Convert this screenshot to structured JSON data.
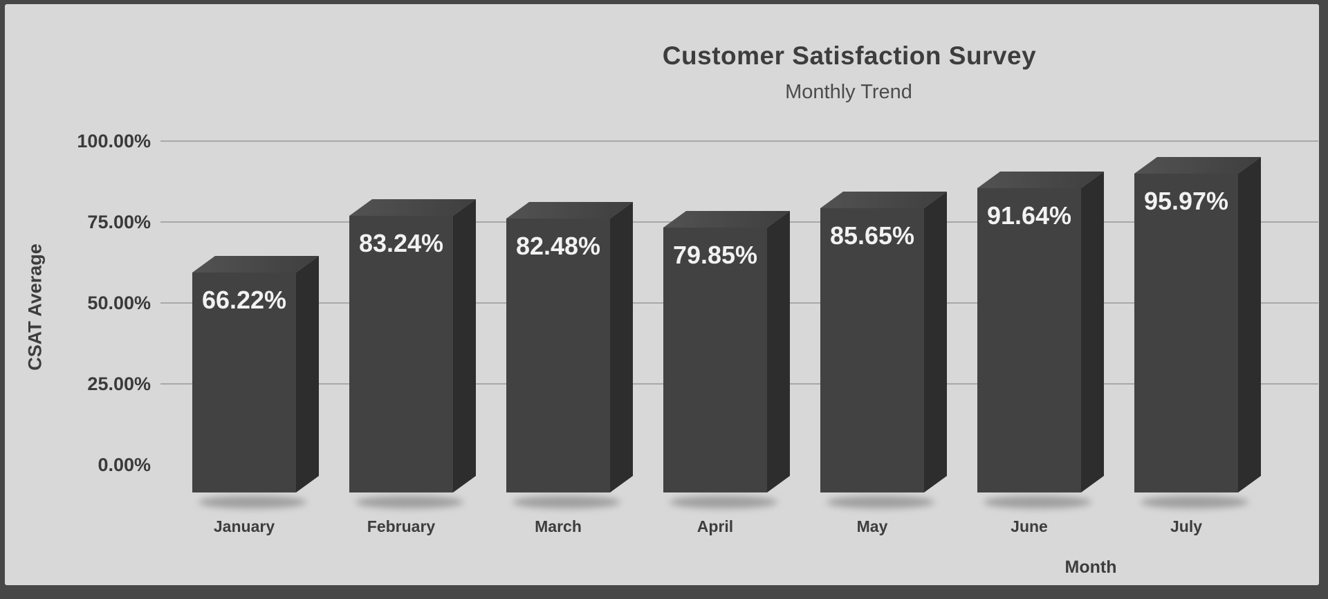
{
  "header": {
    "title": "Customer Satisfaction Survey",
    "subtitle": "Monthly Trend"
  },
  "chart_data": {
    "type": "bar",
    "style": "3d-column",
    "title": "Customer Satisfaction Survey",
    "subtitle": "Monthly Trend",
    "categories": [
      "January",
      "February",
      "March",
      "April",
      "May",
      "June",
      "July"
    ],
    "values": [
      66.22,
      83.24,
      82.48,
      79.85,
      85.65,
      91.64,
      95.97
    ],
    "value_labels": [
      "66.22%",
      "83.24%",
      "82.48%",
      "79.85%",
      "85.65%",
      "91.64%",
      "95.97%"
    ],
    "xlabel": "Month",
    "ylabel": "CSAT Average",
    "ylim": [
      0,
      100
    ],
    "yticks": [
      {
        "value": 0,
        "label": "0.00%"
      },
      {
        "value": 25,
        "label": "25.00%"
      },
      {
        "value": 50,
        "label": "50.00%"
      },
      {
        "value": 75,
        "label": "75.00%"
      },
      {
        "value": 100,
        "label": "100.00%"
      }
    ],
    "grid": true,
    "legend": false
  },
  "colors": {
    "frame": "#474747",
    "panel_bg": "#d8d8d8",
    "gridline": "#a8a8a8",
    "bar_front": "#424242",
    "bar_side": "#2d2d2d",
    "bar_top_light": "#525252",
    "bar_top_dark": "#3f3f3f",
    "value_label": "#f2f2f2",
    "text": "#3d3d3d",
    "shadow": "#9f9f9f"
  }
}
